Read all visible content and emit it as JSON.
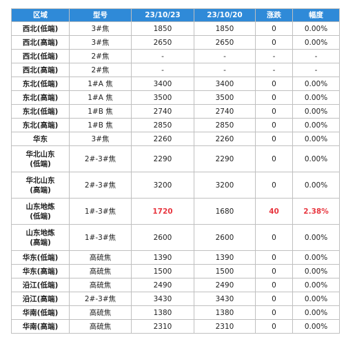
{
  "table": {
    "headers": [
      "区域",
      "型号",
      "23/10/23",
      "23/10/20",
      "涨跌",
      "幅度"
    ],
    "rows": [
      {
        "region": "西北(低端)",
        "type": "3#焦",
        "d1": "1850",
        "d2": "1850",
        "change": "0",
        "pct": "0.00%"
      },
      {
        "region": "西北(高端)",
        "type": "3#焦",
        "d1": "2650",
        "d2": "2650",
        "change": "0",
        "pct": "0.00%"
      },
      {
        "region": "西北(低端)",
        "type": "2#焦",
        "d1": "-",
        "d2": "-",
        "change": "-",
        "pct": "-"
      },
      {
        "region": "西北(高端)",
        "type": "2#焦",
        "d1": "-",
        "d2": "-",
        "change": "-",
        "pct": "-"
      },
      {
        "region": "东北(低端)",
        "type": "1#A 焦",
        "d1": "3400",
        "d2": "3400",
        "change": "0",
        "pct": "0.00%"
      },
      {
        "region": "东北(高端)",
        "type": "1#A 焦",
        "d1": "3500",
        "d2": "3500",
        "change": "0",
        "pct": "0.00%"
      },
      {
        "region": "东北(低端)",
        "type": "1#B 焦",
        "d1": "2740",
        "d2": "2740",
        "change": "0",
        "pct": "0.00%"
      },
      {
        "region": "东北(高端)",
        "type": "1#B 焦",
        "d1": "2850",
        "d2": "2850",
        "change": "0",
        "pct": "0.00%"
      },
      {
        "region": "华东",
        "type": "3#焦",
        "d1": "2260",
        "d2": "2260",
        "change": "0",
        "pct": "0.00%"
      },
      {
        "region": "华北山东\n(低端)",
        "type": "2#-3#焦",
        "d1": "2290",
        "d2": "2290",
        "change": "0",
        "pct": "0.00%"
      },
      {
        "region": "华北山东\n(高端)",
        "type": "2#-3#焦",
        "d1": "3200",
        "d2": "3200",
        "change": "0",
        "pct": "0.00%"
      },
      {
        "region": "山东地炼\n(低端)",
        "type": "1#-3#焦",
        "d1": "1720",
        "d2": "1680",
        "change": "40",
        "pct": "2.38%",
        "highlight": true
      },
      {
        "region": "山东地炼\n(高端)",
        "type": "1#-3#焦",
        "d1": "2600",
        "d2": "2600",
        "change": "0",
        "pct": "0.00%"
      },
      {
        "region": "华东(低端)",
        "type": "高硫焦",
        "d1": "1390",
        "d2": "1390",
        "change": "0",
        "pct": "0.00%"
      },
      {
        "region": "华东(高端)",
        "type": "高硫焦",
        "d1": "1500",
        "d2": "1500",
        "change": "0",
        "pct": "0.00%"
      },
      {
        "region": "沿江(低端)",
        "type": "高硫焦",
        "d1": "2490",
        "d2": "2490",
        "change": "0",
        "pct": "0.00%"
      },
      {
        "region": "沿江(高端)",
        "type": "2#-3#焦",
        "d1": "3430",
        "d2": "3430",
        "change": "0",
        "pct": "0.00%"
      },
      {
        "region": "华南(低端)",
        "type": "高硫焦",
        "d1": "1380",
        "d2": "1380",
        "change": "0",
        "pct": "0.00%"
      },
      {
        "region": "华南(高端)",
        "type": "高硫焦",
        "d1": "2310",
        "d2": "2310",
        "change": "0",
        "pct": "0.00%"
      }
    ],
    "colors": {
      "header_bg": "#2f8ad8",
      "highlight": "#e8363f"
    }
  }
}
